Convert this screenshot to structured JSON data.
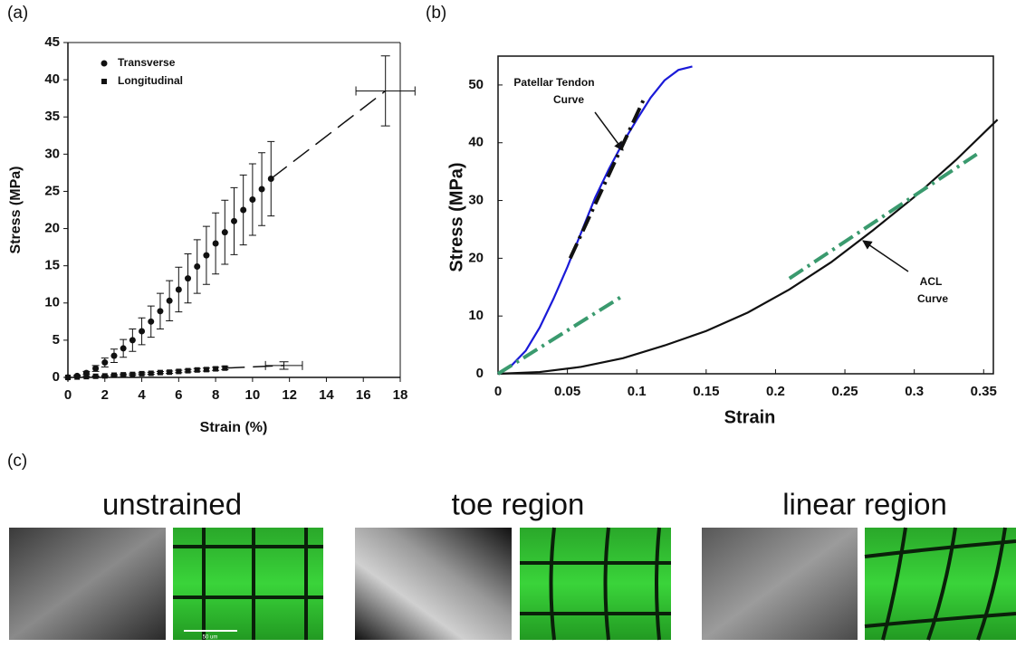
{
  "chart_data": [
    {
      "type": "scatter",
      "panel_label": "(a)",
      "x_label": "Strain (%)",
      "y_label": "Stress (MPa)",
      "xlim": [
        0,
        18
      ],
      "xticks": [
        0,
        2,
        4,
        6,
        8,
        10,
        12,
        14,
        16,
        18
      ],
      "ylim": [
        0,
        45
      ],
      "yticks": [
        0,
        5,
        10,
        15,
        20,
        25,
        30,
        35,
        40,
        45
      ],
      "legend": "top-left",
      "series": [
        {
          "name": "Transverse",
          "marker": "circle",
          "color": "#111111",
          "x": [
            0,
            0.5,
            1,
            1.5,
            2,
            2.5,
            3,
            3.5,
            4,
            4.5,
            5,
            5.5,
            6,
            6.5,
            7,
            7.5,
            8,
            8.5,
            9,
            9.5,
            10,
            10.5,
            11
          ],
          "values": [
            0,
            0.2,
            0.6,
            1.2,
            2.0,
            2.9,
            3.9,
            5.0,
            6.2,
            7.5,
            8.9,
            10.3,
            11.8,
            13.3,
            14.9,
            16.4,
            18.0,
            19.5,
            21.0,
            22.5,
            23.9,
            25.3,
            26.7
          ],
          "errors": [
            0,
            0.1,
            0.2,
            0.4,
            0.6,
            0.9,
            1.2,
            1.5,
            1.8,
            2.1,
            2.4,
            2.7,
            3.0,
            3.3,
            3.6,
            3.9,
            4.1,
            4.3,
            4.5,
            4.7,
            4.8,
            4.9,
            5.0
          ],
          "extrapolated": {
            "x": 17.2,
            "y": 38.5,
            "xerr": 1.6,
            "yerr": 4.7
          }
        },
        {
          "name": "Longitudinal",
          "marker": "square",
          "color": "#111111",
          "x": [
            0,
            0.5,
            1,
            1.5,
            2,
            2.5,
            3,
            3.5,
            4,
            4.5,
            5,
            5.5,
            6,
            6.5,
            7,
            7.5,
            8,
            8.5
          ],
          "values": [
            0,
            0.05,
            0.1,
            0.15,
            0.2,
            0.3,
            0.35,
            0.4,
            0.5,
            0.55,
            0.65,
            0.7,
            0.8,
            0.9,
            1.0,
            1.05,
            1.15,
            1.25
          ],
          "errors": [
            0,
            0.02,
            0.04,
            0.05,
            0.06,
            0.08,
            0.1,
            0.1,
            0.12,
            0.13,
            0.14,
            0.15,
            0.16,
            0.17,
            0.18,
            0.2,
            0.2,
            0.22
          ],
          "extrapolated": {
            "x": 11.7,
            "y": 1.6,
            "xerr": 1.0,
            "yerr": 0.5
          }
        }
      ]
    },
    {
      "type": "line",
      "panel_label": "(b)",
      "x_label": "Strain",
      "y_label": "Stress (MPa)",
      "xlim": [
        0,
        0.357
      ],
      "xticks": [
        0,
        0.05,
        0.1,
        0.15,
        0.2,
        0.25,
        0.3,
        0.35
      ],
      "ylim": [
        0,
        55
      ],
      "yticks": [
        0,
        10,
        20,
        30,
        40,
        50
      ],
      "series": [
        {
          "style": "solid",
          "color": "#1a1ad8",
          "x": [
            0,
            0.01,
            0.02,
            0.03,
            0.04,
            0.05,
            0.06,
            0.07,
            0.08,
            0.09,
            0.1,
            0.11,
            0.12,
            0.13,
            0.14
          ],
          "values": [
            0,
            1.5,
            4,
            8,
            13,
            18.5,
            24.5,
            30.5,
            35.5,
            40,
            44,
            47.8,
            50.8,
            52.6,
            53.2
          ]
        },
        {
          "style": "solid",
          "color": "#111111",
          "x": [
            0,
            0.03,
            0.06,
            0.09,
            0.12,
            0.15,
            0.18,
            0.21,
            0.24,
            0.27,
            0.3,
            0.33,
            0.36
          ],
          "values": [
            0,
            0.3,
            1.2,
            2.7,
            4.9,
            7.4,
            10.6,
            14.6,
            19.3,
            24.8,
            30.6,
            37,
            44
          ]
        },
        {
          "style": "dashdot",
          "color": "#111111",
          "x": [
            0.052,
            0.105
          ],
          "values": [
            20,
            47.5
          ]
        },
        {
          "style": "dashdot",
          "color": "#3a9a6e",
          "x": [
            0,
            0.09
          ],
          "values": [
            0,
            13.5
          ]
        },
        {
          "style": "dashdot",
          "color": "#3a9a6e",
          "x": [
            0.21,
            0.345
          ],
          "values": [
            16.5,
            38
          ]
        }
      ],
      "annotations": [
        [
          "Patellar Tendon",
          "Curve"
        ],
        [
          "ACL",
          "Curve"
        ]
      ]
    }
  ],
  "panel_c": {
    "label": "(c)",
    "groups": [
      {
        "title": "unstrained"
      },
      {
        "title": "toe region"
      },
      {
        "title": "linear region"
      }
    ],
    "scale_bar": "50 um"
  }
}
